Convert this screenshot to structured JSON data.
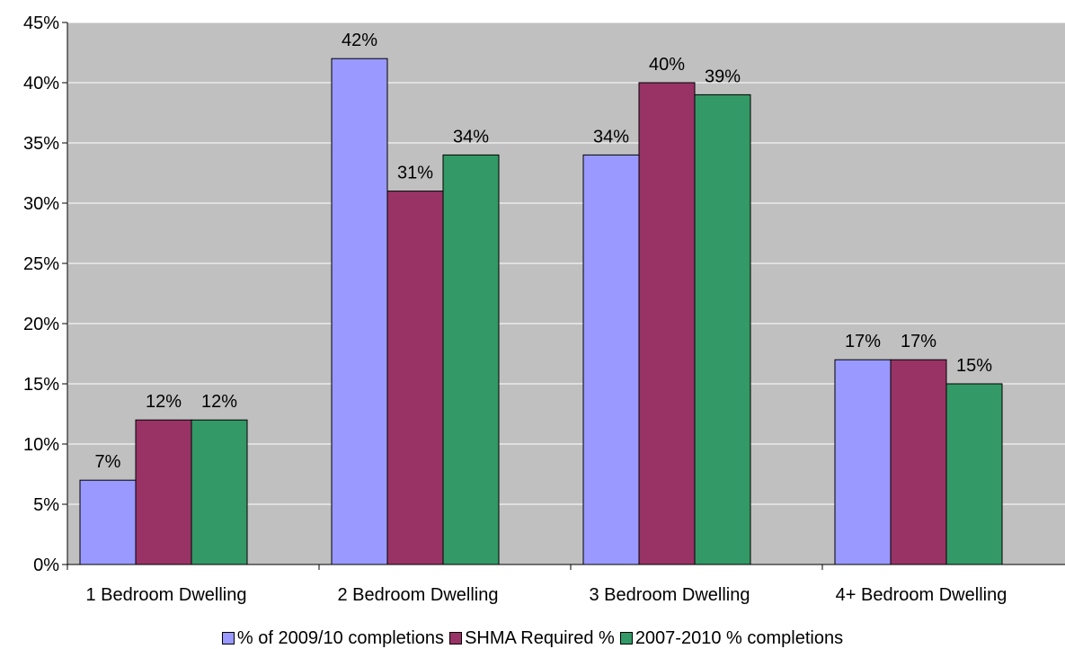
{
  "chart_data": {
    "type": "bar",
    "categories": [
      "1 Bedroom Dwelling",
      "2 Bedroom Dwelling",
      "3 Bedroom Dwelling",
      "4+ Bedroom Dwelling"
    ],
    "series": [
      {
        "name": "% of 2009/10 completions",
        "color": "#9999FF",
        "values": [
          7,
          42,
          34,
          17
        ],
        "labels": [
          "7%",
          "42%",
          "34%",
          "17%"
        ]
      },
      {
        "name": "SHMA Required %",
        "color": "#993366",
        "values": [
          12,
          31,
          40,
          17
        ],
        "labels": [
          "12%",
          "31%",
          "40%",
          "17%"
        ]
      },
      {
        "name": "2007-2010 % completions",
        "color": "#339966",
        "values": [
          12,
          34,
          39,
          15
        ],
        "labels": [
          "12%",
          "34%",
          "39%",
          "15%"
        ]
      }
    ],
    "ylim": [
      0,
      45
    ],
    "yticks": [
      0,
      5,
      10,
      15,
      20,
      25,
      30,
      35,
      40,
      45
    ],
    "ytick_labels": [
      "0%",
      "5%",
      "10%",
      "15%",
      "20%",
      "25%",
      "30%",
      "35%",
      "40%",
      "45%"
    ],
    "grid": true,
    "plot_background": "#C0C0C0",
    "legend_position": "bottom"
  }
}
